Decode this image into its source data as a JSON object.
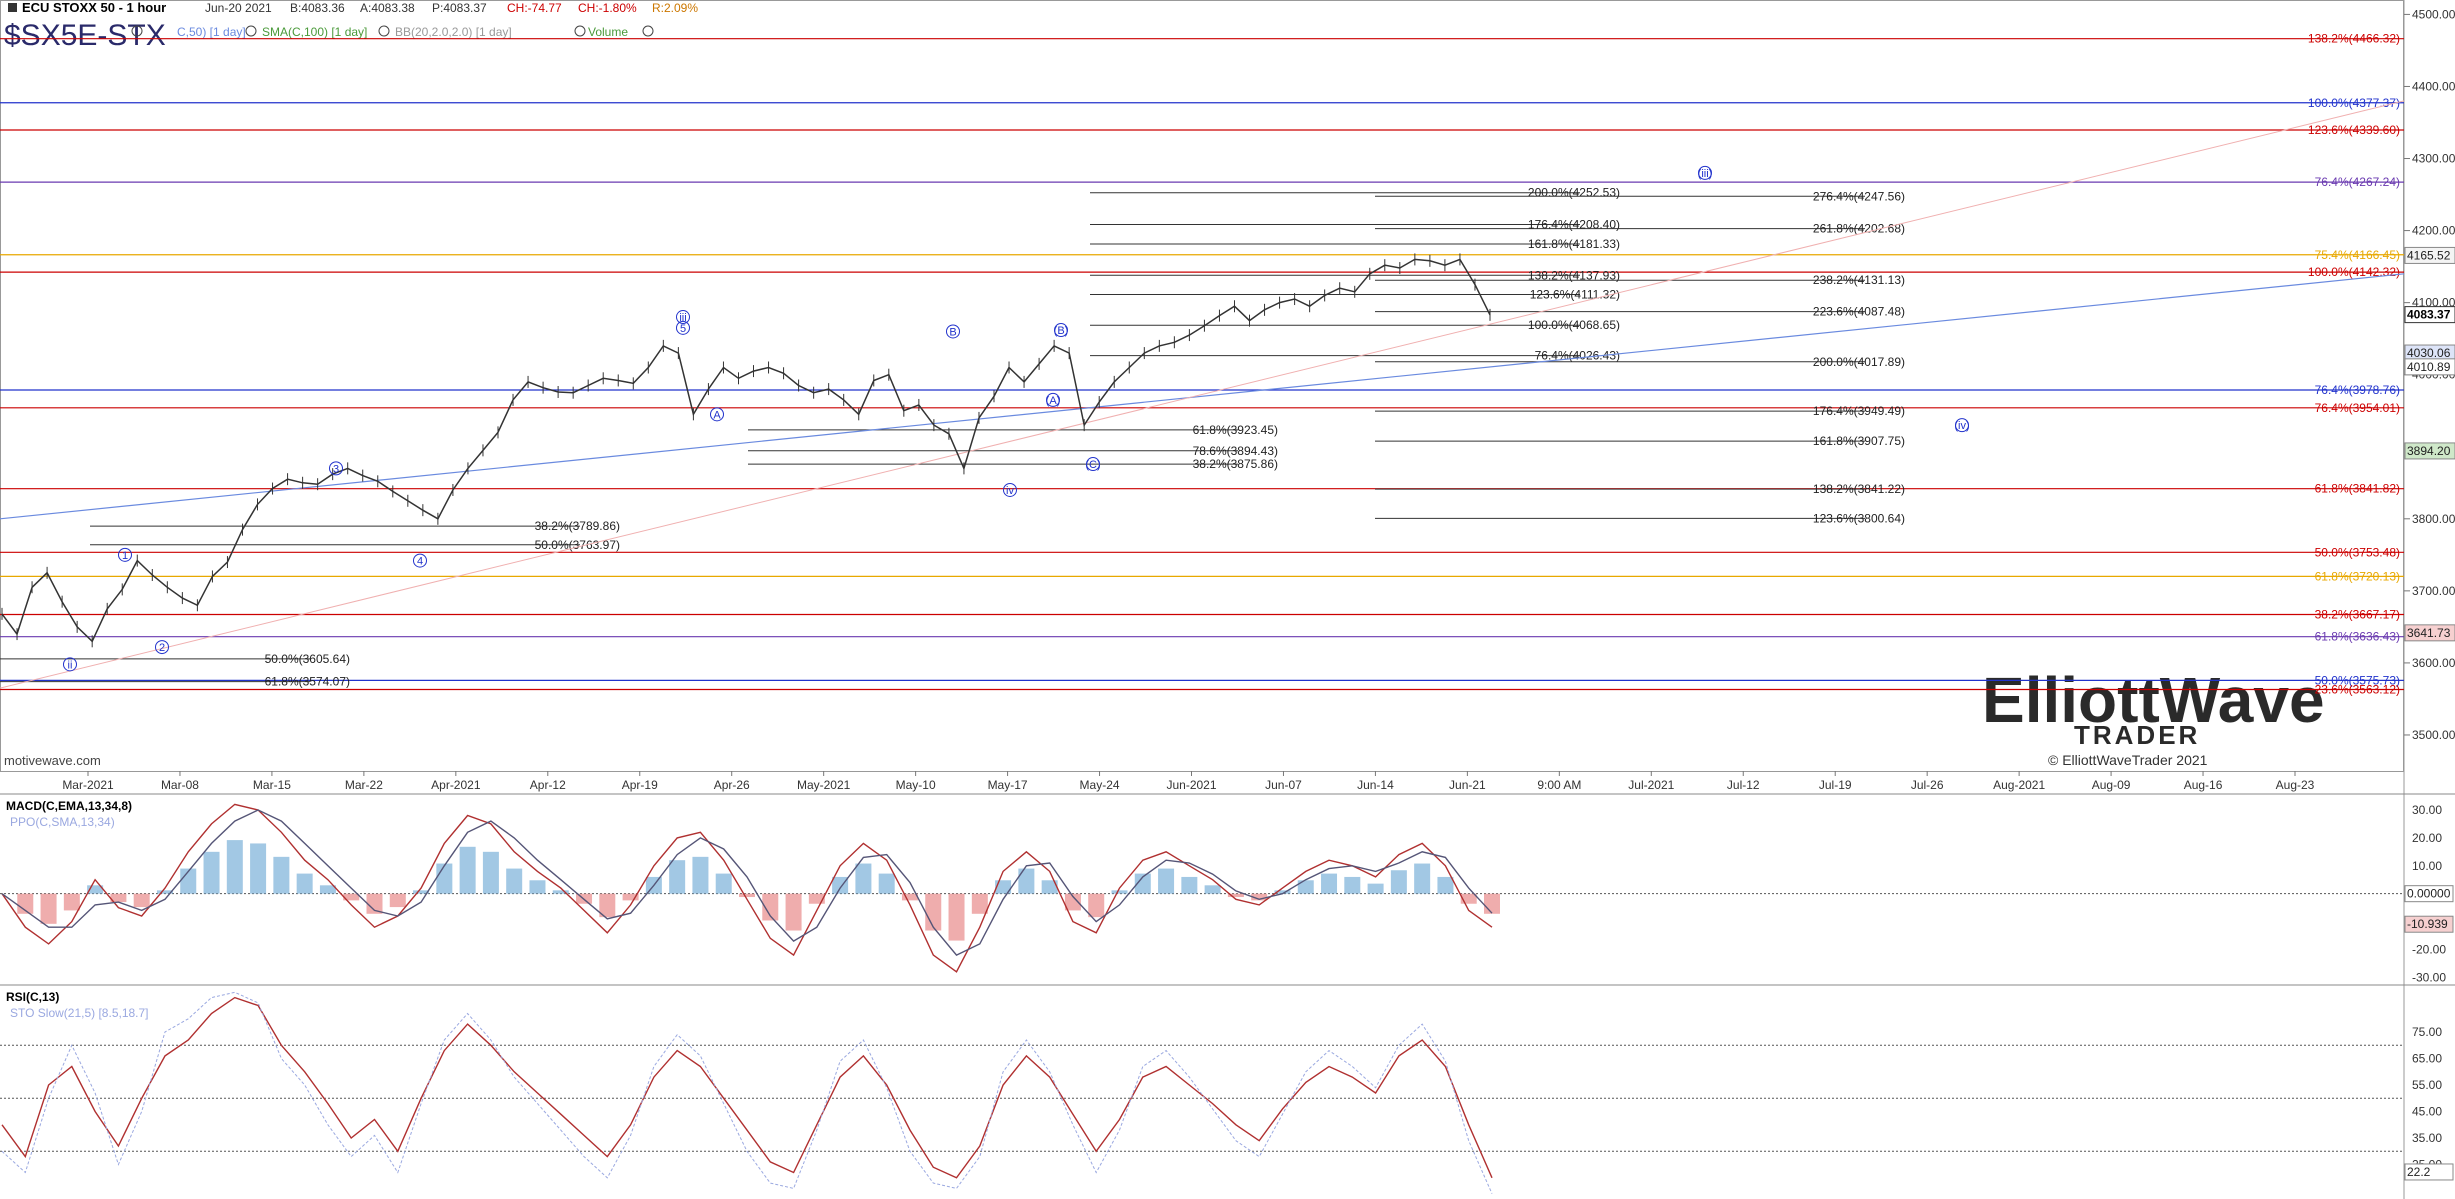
{
  "header": {
    "title": "ECU STOXX 50 - 1 hour",
    "date": "Jun-20 2021",
    "bid": "B:4083.36",
    "ask": "A:4083.38",
    "price": "P:4083.37",
    "change": "CH:-74.77",
    "change_pct": "CH:-1.80%",
    "range": "R:2.09%",
    "symbol": "$SX5E-STX",
    "legend_sma_small": "C,50) [1 day]",
    "legend_sma": "SMA(C,100) [1 day]",
    "legend_bb": "BB(20,2.0,2.0) [1 day]",
    "legend_volume": "Volume"
  },
  "colors": {
    "price": "#333333",
    "up": "#cc0000",
    "blue": "#2233cc",
    "purple": "#6a3ab0",
    "orange": "#e8a800",
    "green": "#4a9a3a",
    "macd_up": "#7ab0d8",
    "macd_down": "#e88a8a"
  },
  "watermark": {
    "site": "motivewave.com",
    "logo_top": "ElliottWave",
    "logo_bottom": "TRADER",
    "copyright": "© ElliottWaveTrader 2021"
  },
  "chart_data": [
    {
      "type": "line",
      "title": "ECU STOXX 50 - 1 hour",
      "ylim": [
        3450,
        4520
      ],
      "y_ticks": [
        "4500.00",
        "4400.00",
        "4300.00",
        "4200.00",
        "4100.00",
        "4000.00",
        "3800.00",
        "3700.00",
        "3600.00",
        "3500.00"
      ],
      "x_ticks": [
        "Mar-2021",
        "Mar-08",
        "Mar-15",
        "Mar-22",
        "Apr-2021",
        "Apr-12",
        "Apr-19",
        "Apr-26",
        "May-2021",
        "May-10",
        "May-17",
        "May-24",
        "Jun-2021",
        "Jun-07",
        "Jun-14",
        "Jun-21",
        "9:00 AM",
        "Jul-2021",
        "Jul-12",
        "Jul-19",
        "Jul-26",
        "Aug-2021",
        "Aug-09",
        "Aug-16",
        "Aug-23"
      ],
      "series": [
        {
          "values": [
            3668,
            3640,
            3705,
            3725,
            3685,
            3650,
            3630,
            3675,
            3702,
            3742,
            3722,
            3705,
            3690,
            3680,
            3720,
            3740,
            3785,
            3820,
            3842,
            3855,
            3850,
            3848,
            3862,
            3870,
            3860,
            3852,
            3838,
            3825,
            3812,
            3800,
            3840,
            3870,
            3895,
            3920,
            3965,
            3990,
            3982,
            3976,
            3975,
            3985,
            3995,
            3992,
            3988,
            4010,
            4040,
            4030,
            3945,
            3980,
            4010,
            3995,
            4005,
            4010,
            4002,
            3985,
            3975,
            3980,
            3965,
            3945,
            3992,
            4000,
            3950,
            3958,
            3930,
            3918,
            3870,
            3940,
            3970,
            4010,
            3990,
            4015,
            4040,
            4030,
            3930,
            3962,
            3990,
            4010,
            4030,
            4040,
            4045,
            4055,
            4068,
            4082,
            4095,
            4075,
            4090,
            4100,
            4105,
            4095,
            4110,
            4120,
            4115,
            4140,
            4152,
            4148,
            4160,
            4158,
            4152,
            4160,
            4125,
            4083
          ]
        }
      ],
      "price_label": "4083.37",
      "axis_tags": [
        "4165.52",
        "4030.06",
        "4010.89",
        "3894.20",
        "3641.73"
      ],
      "wave_labels": [
        "1",
        "2",
        "3",
        "4",
        "5",
        "iii",
        "A",
        "B",
        "(A)",
        "(B)",
        "(C)",
        "iv",
        "ii",
        "(iii)",
        "(iv)"
      ],
      "fib_levels": [
        {
          "text": "138.2%(4466.32)",
          "price": 4466.32,
          "color": "#cc0000"
        },
        {
          "text": "100.0%(4377.37)",
          "price": 4377.37,
          "color": "#2233cc"
        },
        {
          "text": "123.6%(4339.60)",
          "price": 4339.6,
          "color": "#cc0000"
        },
        {
          "text": "76.4%(4267.24)",
          "price": 4267.24,
          "color": "#6a3ab0"
        },
        {
          "text": "75.4%(4166.45)",
          "price": 4166.45,
          "color": "#e8a800"
        },
        {
          "text": "100.0%(4142.32)",
          "price": 4142.32,
          "color": "#cc0000"
        },
        {
          "text": "76.4%(3978.76)",
          "price": 3978.76,
          "color": "#2233cc"
        },
        {
          "text": "76.4%(3954.01)",
          "price": 3954.01,
          "color": "#cc0000"
        },
        {
          "text": "61.8%(3841.82)",
          "price": 3841.82,
          "color": "#cc0000"
        },
        {
          "text": "50.0%(3753.48)",
          "price": 3753.48,
          "color": "#cc0000"
        },
        {
          "text": "61.8%(3720.13)",
          "price": 3720.13,
          "color": "#e8a800"
        },
        {
          "text": "38.2%(3667.17)",
          "price": 3667.17,
          "color": "#cc0000"
        },
        {
          "text": "61.8%(3636.43)",
          "price": 3636.43,
          "color": "#6a3ab0"
        },
        {
          "text": "50.0%(3575.73)",
          "price": 3575.73,
          "color": "#2233cc"
        },
        {
          "text": "23.6%(3563.12)",
          "price": 3563.12,
          "color": "#cc0000"
        }
      ],
      "target_levels": [
        {
          "text": "200.0%(4252.53)",
          "price": 4252.53
        },
        {
          "text": "176.4%(4208.40)",
          "price": 4208.4
        },
        {
          "text": "161.8%(4181.33)",
          "price": 4181.33
        },
        {
          "text": "138.2%(4137.93)",
          "price": 4137.93
        },
        {
          "text": "123.6%(4111.32)",
          "price": 4111.32
        },
        {
          "text": "100.0%(4068.65)",
          "price": 4068.65
        },
        {
          "text": "76.4%(4026.43)",
          "price": 4026.43
        },
        {
          "text": "276.4%(4247.56)",
          "price": 4247.56
        },
        {
          "text": "261.8%(4202.68)",
          "price": 4202.68
        },
        {
          "text": "238.2%(4131.13)",
          "price": 4131.13
        },
        {
          "text": "223.6%(4087.48)",
          "price": 4087.48
        },
        {
          "text": "200.0%(4017.89)",
          "price": 4017.89
        },
        {
          "text": "176.4%(3949.49)",
          "price": 3949.49
        },
        {
          "text": "161.8%(3907.75)",
          "price": 3907.75
        },
        {
          "text": "138.2%(3841.22)",
          "price": 3841.22
        },
        {
          "text": "123.6%(3800.64)",
          "price": 3800.64
        },
        {
          "text": "61.8%(3923.45)",
          "price": 3923.45
        },
        {
          "text": "78.6%(3894.43)",
          "price": 3894.43
        },
        {
          "text": "38.2%(3875.86)",
          "price": 3875.86
        },
        {
          "text": "38.2%(3789.86)",
          "price": 3789.86
        },
        {
          "text": "50.0%(3763.97)",
          "price": 3763.97
        },
        {
          "text": "50.0%(3605.64)",
          "price": 3605.64
        },
        {
          "text": "61.8%(3574.07)",
          "price": 3574.07
        }
      ]
    },
    {
      "type": "line",
      "title": "MACD(C,EMA,13,34,8)",
      "legend_secondary": "PPO(C,SMA,13,34)",
      "ylim": [
        -32,
        35
      ],
      "y_ticks": [
        "30.00",
        "20.00",
        "10.00",
        "-20.00",
        "-30.00"
      ],
      "value_tags": [
        "0.00000",
        "-10.939"
      ],
      "series": [
        {
          "name": "MACD",
          "values": [
            0,
            -12,
            -18,
            -10,
            5,
            -5,
            -8,
            2,
            15,
            25,
            32,
            30,
            22,
            12,
            5,
            -4,
            -12,
            -8,
            2,
            18,
            28,
            25,
            15,
            8,
            2,
            -6,
            -14,
            -4,
            10,
            20,
            22,
            12,
            -2,
            -16,
            -22,
            -6,
            10,
            18,
            12,
            -4,
            -22,
            -28,
            -12,
            8,
            15,
            8,
            -10,
            -14,
            2,
            12,
            15,
            10,
            5,
            -2,
            -4,
            2,
            8,
            12,
            10,
            6,
            14,
            18,
            10,
            -6,
            -12
          ]
        },
        {
          "name": "Signal",
          "values": [
            0,
            -6,
            -12,
            -12,
            -4,
            -3,
            -6,
            -2,
            8,
            18,
            26,
            30,
            26,
            18,
            10,
            2,
            -6,
            -8,
            -3,
            10,
            22,
            26,
            20,
            12,
            5,
            -2,
            -9,
            -7,
            3,
            14,
            20,
            16,
            6,
            -8,
            -17,
            -12,
            2,
            13,
            14,
            4,
            -12,
            -22,
            -18,
            -2,
            10,
            11,
            -1,
            -10,
            -4,
            6,
            12,
            11,
            7,
            1,
            -2,
            0,
            5,
            9,
            10,
            8,
            11,
            15,
            13,
            2,
            -7
          ]
        }
      ]
    },
    {
      "type": "line",
      "title": "RSI(C,13)",
      "legend_secondary": "STO Slow(21,5) [8.5,18.7]",
      "ylim": [
        12,
        92
      ],
      "y_ticks": [
        "75.00",
        "65.00",
        "55.00",
        "45.00",
        "35.00",
        "25.00"
      ],
      "value_tags": [
        "22.2",
        "8.5"
      ],
      "series": [
        {
          "name": "RSI",
          "values": [
            40,
            28,
            55,
            62,
            45,
            32,
            50,
            66,
            72,
            82,
            88,
            85,
            70,
            60,
            48,
            35,
            42,
            30,
            50,
            68,
            78,
            70,
            60,
            52,
            44,
            36,
            28,
            40,
            58,
            68,
            62,
            50,
            38,
            26,
            22,
            40,
            58,
            66,
            55,
            38,
            24,
            20,
            32,
            55,
            66,
            58,
            44,
            30,
            42,
            58,
            62,
            55,
            48,
            40,
            34,
            46,
            56,
            62,
            58,
            52,
            66,
            72,
            62,
            40,
            20
          ]
        },
        {
          "name": "STO",
          "values": [
            30,
            22,
            50,
            70,
            52,
            25,
            45,
            75,
            80,
            88,
            90,
            86,
            65,
            55,
            40,
            28,
            36,
            22,
            48,
            72,
            82,
            72,
            58,
            48,
            38,
            28,
            20,
            36,
            62,
            74,
            66,
            48,
            30,
            18,
            16,
            38,
            64,
            72,
            54,
            30,
            18,
            16,
            28,
            60,
            72,
            60,
            40,
            22,
            38,
            62,
            68,
            58,
            46,
            34,
            28,
            44,
            60,
            68,
            62,
            54,
            70,
            78,
            64,
            34,
            14
          ]
        }
      ]
    }
  ]
}
